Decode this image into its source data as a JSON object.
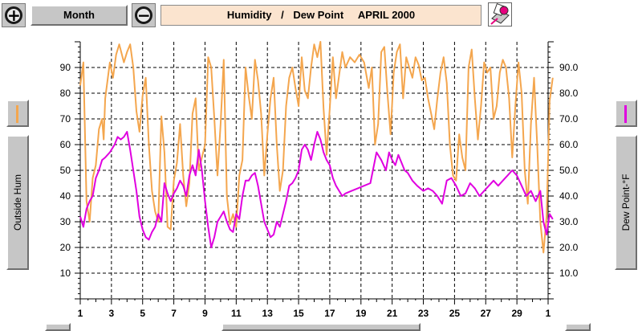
{
  "toolbar": {
    "zoom_in_icon": "plus-circle-icon",
    "zoom_out_icon": "minus-circle-icon",
    "period_button_label": "Month",
    "title_part1": "Humidity",
    "title_separator": "/",
    "title_part2": "Dew Point",
    "title_period": "APRIL 2000",
    "print_icon": "printer-icon"
  },
  "left_panel": {
    "axis_button_label": "Outside Hum",
    "series_color": "#f4a64e"
  },
  "right_panel": {
    "axis_button_label": "Dew Point-°F",
    "series_color": "#e000e0"
  },
  "chart_data": {
    "type": "line",
    "x_tick_labels": [
      "1",
      "3",
      "5",
      "7",
      "9",
      "11",
      "13",
      "15",
      "17",
      "19",
      "21",
      "23",
      "25",
      "27",
      "29",
      "1"
    ],
    "x_range": [
      1,
      31
    ],
    "left_axis": {
      "range": [
        0,
        100
      ],
      "ticks": [
        10,
        20,
        30,
        40,
        50,
        60,
        70,
        80,
        90
      ],
      "tick_labels": [
        "10",
        "20",
        "30",
        "40",
        "50",
        "60",
        "70",
        "80",
        "90"
      ]
    },
    "right_axis": {
      "range": [
        0,
        100
      ],
      "ticks": [
        10,
        20,
        30,
        40,
        50,
        60,
        70,
        80,
        90
      ],
      "tick_labels": [
        "10.0",
        "20.0",
        "30.0",
        "40.0",
        "50.0",
        "60.0",
        "70.0",
        "80.0",
        "90.0"
      ]
    },
    "grid": true,
    "series": [
      {
        "axis": "left",
        "color": "#f4a64e",
        "points": [
          [
            1.0,
            83
          ],
          [
            1.2,
            92
          ],
          [
            1.4,
            38
          ],
          [
            1.6,
            30
          ],
          [
            1.8,
            47
          ],
          [
            2.0,
            52
          ],
          [
            2.2,
            66
          ],
          [
            2.4,
            70
          ],
          [
            2.5,
            62
          ],
          [
            2.6,
            78
          ],
          [
            2.9,
            92
          ],
          [
            3.1,
            86
          ],
          [
            3.3,
            95
          ],
          [
            3.5,
            99
          ],
          [
            3.8,
            92
          ],
          [
            4.0,
            96
          ],
          [
            4.2,
            99
          ],
          [
            4.4,
            90
          ],
          [
            4.6,
            73
          ],
          [
            4.8,
            65
          ],
          [
            5.0,
            79
          ],
          [
            5.2,
            86
          ],
          [
            5.4,
            60
          ],
          [
            5.6,
            42
          ],
          [
            5.8,
            34
          ],
          [
            6.0,
            30
          ],
          [
            6.2,
            71
          ],
          [
            6.4,
            57
          ],
          [
            6.6,
            28
          ],
          [
            6.8,
            27
          ],
          [
            7.0,
            46
          ],
          [
            7.2,
            53
          ],
          [
            7.4,
            68
          ],
          [
            7.6,
            48
          ],
          [
            7.8,
            36
          ],
          [
            8.0,
            45
          ],
          [
            8.2,
            72
          ],
          [
            8.4,
            78
          ],
          [
            8.6,
            50
          ],
          [
            8.8,
            55
          ],
          [
            9.0,
            60
          ],
          [
            9.2,
            94
          ],
          [
            9.4,
            90
          ],
          [
            9.6,
            70
          ],
          [
            9.8,
            48
          ],
          [
            10.0,
            68
          ],
          [
            10.2,
            93
          ],
          [
            10.4,
            40
          ],
          [
            10.6,
            29
          ],
          [
            10.8,
            33
          ],
          [
            11.0,
            28
          ],
          [
            11.2,
            48
          ],
          [
            11.4,
            54
          ],
          [
            11.6,
            90
          ],
          [
            11.8,
            79
          ],
          [
            12.0,
            70
          ],
          [
            12.2,
            93
          ],
          [
            12.4,
            85
          ],
          [
            12.6,
            72
          ],
          [
            12.8,
            48
          ],
          [
            13.0,
            64
          ],
          [
            13.2,
            78
          ],
          [
            13.4,
            86
          ],
          [
            13.6,
            60
          ],
          [
            13.8,
            42
          ],
          [
            14.0,
            50
          ],
          [
            14.2,
            75
          ],
          [
            14.4,
            86
          ],
          [
            14.6,
            90
          ],
          [
            14.8,
            82
          ],
          [
            15.0,
            75
          ],
          [
            15.2,
            94
          ],
          [
            15.4,
            81
          ],
          [
            15.6,
            78
          ],
          [
            15.8,
            90
          ],
          [
            16.0,
            99
          ],
          [
            16.2,
            94
          ],
          [
            16.4,
            100
          ],
          [
            16.6,
            74
          ],
          [
            16.8,
            56
          ],
          [
            17.0,
            74
          ],
          [
            17.2,
            94
          ],
          [
            17.4,
            78
          ],
          [
            17.6,
            87
          ],
          [
            17.8,
            96
          ],
          [
            18.0,
            90
          ],
          [
            18.3,
            94
          ],
          [
            18.6,
            92
          ],
          [
            18.9,
            95
          ],
          [
            19.2,
            92
          ],
          [
            19.5,
            82
          ],
          [
            19.7,
            90
          ],
          [
            19.9,
            60
          ],
          [
            20.1,
            68
          ],
          [
            20.3,
            96
          ],
          [
            20.5,
            98
          ],
          [
            20.7,
            80
          ],
          [
            20.9,
            64
          ],
          [
            21.1,
            88
          ],
          [
            21.3,
            96
          ],
          [
            21.5,
            99
          ],
          [
            21.7,
            78
          ],
          [
            21.9,
            94
          ],
          [
            22.1,
            90
          ],
          [
            22.3,
            86
          ],
          [
            22.5,
            94
          ],
          [
            22.7,
            91
          ],
          [
            22.9,
            85
          ],
          [
            23.1,
            86
          ],
          [
            23.3,
            78
          ],
          [
            23.5,
            72
          ],
          [
            23.7,
            66
          ],
          [
            23.9,
            78
          ],
          [
            24.1,
            88
          ],
          [
            24.3,
            94
          ],
          [
            24.5,
            84
          ],
          [
            24.7,
            60
          ],
          [
            24.9,
            48
          ],
          [
            25.1,
            46
          ],
          [
            25.3,
            64
          ],
          [
            25.5,
            55
          ],
          [
            25.7,
            50
          ],
          [
            25.9,
            90
          ],
          [
            26.1,
            97
          ],
          [
            26.3,
            78
          ],
          [
            26.5,
            62
          ],
          [
            26.7,
            75
          ],
          [
            26.9,
            92
          ],
          [
            27.1,
            88
          ],
          [
            27.3,
            90
          ],
          [
            27.5,
            70
          ],
          [
            27.7,
            75
          ],
          [
            27.9,
            88
          ],
          [
            28.1,
            93
          ],
          [
            28.3,
            90
          ],
          [
            28.5,
            78
          ],
          [
            28.7,
            55
          ],
          [
            28.9,
            75
          ],
          [
            29.1,
            92
          ],
          [
            29.3,
            80
          ],
          [
            29.5,
            50
          ],
          [
            29.7,
            37
          ],
          [
            29.9,
            68
          ],
          [
            30.1,
            86
          ],
          [
            30.3,
            60
          ],
          [
            30.5,
            30
          ],
          [
            30.7,
            18
          ],
          [
            30.9,
            32
          ],
          [
            31.1,
            77
          ],
          [
            31.3,
            86
          ]
        ]
      },
      {
        "axis": "right",
        "color": "#e000e0",
        "points": [
          [
            1.0,
            32
          ],
          [
            1.2,
            28
          ],
          [
            1.4,
            35
          ],
          [
            1.6,
            38
          ],
          [
            1.8,
            40
          ],
          [
            2.0,
            47
          ],
          [
            2.2,
            50
          ],
          [
            2.4,
            54
          ],
          [
            2.6,
            55
          ],
          [
            2.9,
            57
          ],
          [
            3.2,
            60
          ],
          [
            3.4,
            63
          ],
          [
            3.6,
            62
          ],
          [
            3.8,
            63
          ],
          [
            4.0,
            65
          ],
          [
            4.2,
            58
          ],
          [
            4.4,
            50
          ],
          [
            4.6,
            42
          ],
          [
            4.8,
            32
          ],
          [
            5.0,
            27
          ],
          [
            5.2,
            24
          ],
          [
            5.4,
            23
          ],
          [
            5.6,
            26
          ],
          [
            5.8,
            28
          ],
          [
            6.0,
            33
          ],
          [
            6.2,
            30
          ],
          [
            6.4,
            45
          ],
          [
            6.6,
            41
          ],
          [
            6.8,
            38
          ],
          [
            7.0,
            41
          ],
          [
            7.2,
            43
          ],
          [
            7.4,
            46
          ],
          [
            7.6,
            44
          ],
          [
            7.8,
            40
          ],
          [
            8.0,
            48
          ],
          [
            8.2,
            52
          ],
          [
            8.4,
            48
          ],
          [
            8.6,
            58
          ],
          [
            8.8,
            50
          ],
          [
            9.0,
            38
          ],
          [
            9.2,
            28
          ],
          [
            9.4,
            20
          ],
          [
            9.6,
            24
          ],
          [
            9.8,
            30
          ],
          [
            10.0,
            32
          ],
          [
            10.2,
            34
          ],
          [
            10.4,
            30
          ],
          [
            10.6,
            27
          ],
          [
            10.8,
            26
          ],
          [
            11.0,
            33
          ],
          [
            11.2,
            31
          ],
          [
            11.4,
            40
          ],
          [
            11.6,
            46
          ],
          [
            11.8,
            46
          ],
          [
            12.0,
            48
          ],
          [
            12.2,
            49
          ],
          [
            12.4,
            44
          ],
          [
            12.6,
            37
          ],
          [
            12.8,
            30
          ],
          [
            13.0,
            27
          ],
          [
            13.2,
            24
          ],
          [
            13.4,
            25
          ],
          [
            13.6,
            30
          ],
          [
            13.8,
            28
          ],
          [
            14.0,
            33
          ],
          [
            14.2,
            38
          ],
          [
            14.4,
            44
          ],
          [
            14.6,
            45
          ],
          [
            14.8,
            47
          ],
          [
            15.0,
            50
          ],
          [
            15.2,
            58
          ],
          [
            15.4,
            60
          ],
          [
            15.6,
            58
          ],
          [
            15.8,
            54
          ],
          [
            16.0,
            60
          ],
          [
            16.2,
            65
          ],
          [
            16.4,
            62
          ],
          [
            16.6,
            57
          ],
          [
            16.8,
            54
          ],
          [
            17.0,
            52
          ],
          [
            17.2,
            47
          ],
          [
            17.4,
            44
          ],
          [
            17.6,
            42
          ],
          [
            17.8,
            40
          ],
          [
            18.0,
            41
          ],
          [
            18.4,
            42
          ],
          [
            18.8,
            43
          ],
          [
            19.2,
            44
          ],
          [
            19.6,
            45
          ],
          [
            20.0,
            57
          ],
          [
            20.3,
            54
          ],
          [
            20.6,
            50
          ],
          [
            20.8,
            57
          ],
          [
            21.0,
            54
          ],
          [
            21.2,
            52
          ],
          [
            21.4,
            56
          ],
          [
            21.6,
            53
          ],
          [
            21.8,
            50
          ],
          [
            22.0,
            49
          ],
          [
            22.3,
            46
          ],
          [
            22.6,
            44
          ],
          [
            23.0,
            42
          ],
          [
            23.3,
            43
          ],
          [
            23.6,
            42
          ],
          [
            23.9,
            40
          ],
          [
            24.2,
            37
          ],
          [
            24.5,
            46
          ],
          [
            24.8,
            47
          ],
          [
            25.1,
            44
          ],
          [
            25.4,
            40
          ],
          [
            25.7,
            41
          ],
          [
            26.0,
            45
          ],
          [
            26.3,
            43
          ],
          [
            26.6,
            40
          ],
          [
            26.9,
            42
          ],
          [
            27.2,
            44
          ],
          [
            27.5,
            46
          ],
          [
            27.8,
            44
          ],
          [
            28.1,
            46
          ],
          [
            28.4,
            48
          ],
          [
            28.7,
            50
          ],
          [
            29.0,
            48
          ],
          [
            29.3,
            44
          ],
          [
            29.6,
            40
          ],
          [
            29.9,
            42
          ],
          [
            30.2,
            38
          ],
          [
            30.5,
            42
          ],
          [
            30.7,
            30
          ],
          [
            30.9,
            25
          ],
          [
            31.1,
            33
          ],
          [
            31.3,
            31
          ]
        ]
      }
    ]
  }
}
